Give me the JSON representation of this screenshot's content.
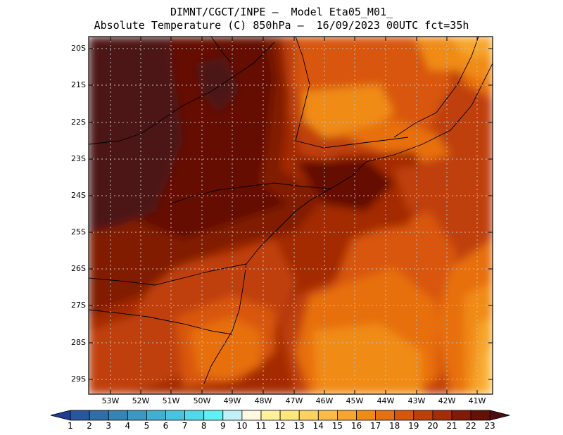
{
  "title": {
    "line1": "DIMNT/CGCT/INPE –  Model Eta05_M01_",
    "line2": "Absolute Temperature (C) 850hPa –  16/09/2023 00UTC fct=35h"
  },
  "axes": {
    "lat_labels": [
      "20S",
      "21S",
      "22S",
      "23S",
      "24S",
      "25S",
      "26S",
      "27S",
      "28S",
      "29S"
    ],
    "lon_labels": [
      "53W",
      "52W",
      "51W",
      "50W",
      "49W",
      "48W",
      "47W",
      "46W",
      "45W",
      "44W",
      "43W",
      "42W",
      "41W"
    ]
  },
  "colorbar": {
    "labels": [
      "1",
      "2",
      "3",
      "4",
      "5",
      "6",
      "7",
      "8",
      "9",
      "10",
      "11",
      "12",
      "13",
      "14",
      "15",
      "16",
      "17",
      "18",
      "19",
      "20",
      "21",
      "22",
      "23"
    ],
    "colors": [
      "#1f3d94",
      "#27589f",
      "#2e6faa",
      "#3584b6",
      "#3a98c3",
      "#3fb0d2",
      "#47c5df",
      "#51d8ea",
      "#5cf2f5",
      "#c2f0f8",
      "#fff9e1",
      "#fff19c",
      "#ffe77a",
      "#fed25f",
      "#fbbc47",
      "#f7a52c",
      "#f08b14",
      "#e77010",
      "#d8560b",
      "#bf3f08",
      "#a42c06",
      "#821a05",
      "#651004",
      "#4d0d0f"
    ]
  },
  "map_colors": {
    "t23": "#651004",
    "t23_dark": "#4d1517",
    "t22": "#821a05",
    "t21": "#a42c06",
    "t20": "#bf3f08",
    "t19": "#d8560b",
    "t18": "#e77010",
    "t17": "#f08b14",
    "t16": "#f7a52c",
    "t15": "#fbbc47"
  }
}
